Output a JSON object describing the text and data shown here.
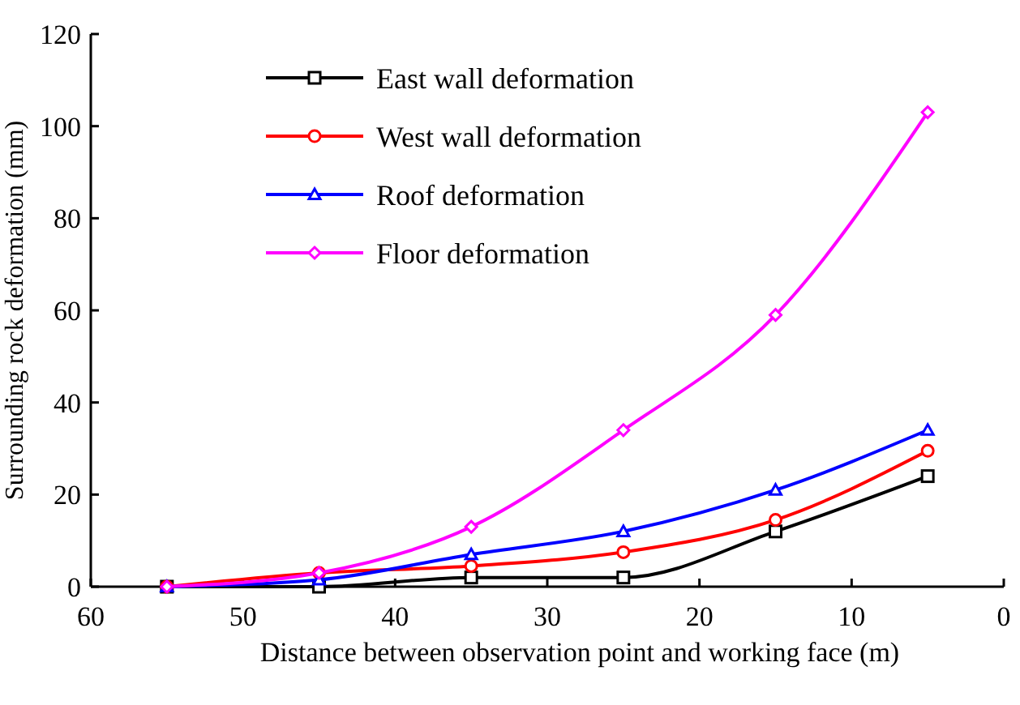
{
  "chart_data": {
    "type": "line",
    "xlabel": "Distance between observation point and working face (m)",
    "ylabel": "Surrounding rock deformation (mm)",
    "x": [
      55,
      45,
      35,
      25,
      15,
      5
    ],
    "xlim": [
      60,
      0
    ],
    "xticks": [
      60,
      50,
      40,
      30,
      20,
      10,
      0
    ],
    "ylim": [
      0,
      120
    ],
    "yticks": [
      0,
      20,
      40,
      60,
      80,
      100,
      120
    ],
    "grid": false,
    "legend": "top left",
    "series": [
      {
        "name": "East wall deformation",
        "color": "#000000",
        "marker": "square",
        "values": [
          0,
          0,
          2,
          2,
          12,
          24
        ]
      },
      {
        "name": "West wall deformation",
        "color": "#ff0000",
        "marker": "circle",
        "values": [
          0,
          3,
          4.5,
          7.5,
          14.5,
          29.5
        ]
      },
      {
        "name": "Roof deformation",
        "color": "#0000ff",
        "marker": "triangle",
        "values": [
          0,
          1.5,
          7,
          12,
          21,
          34
        ]
      },
      {
        "name": "Floor deformation",
        "color": "#ff00ff",
        "marker": "diamond",
        "values": [
          0,
          3,
          13,
          34,
          59,
          103
        ]
      }
    ]
  }
}
